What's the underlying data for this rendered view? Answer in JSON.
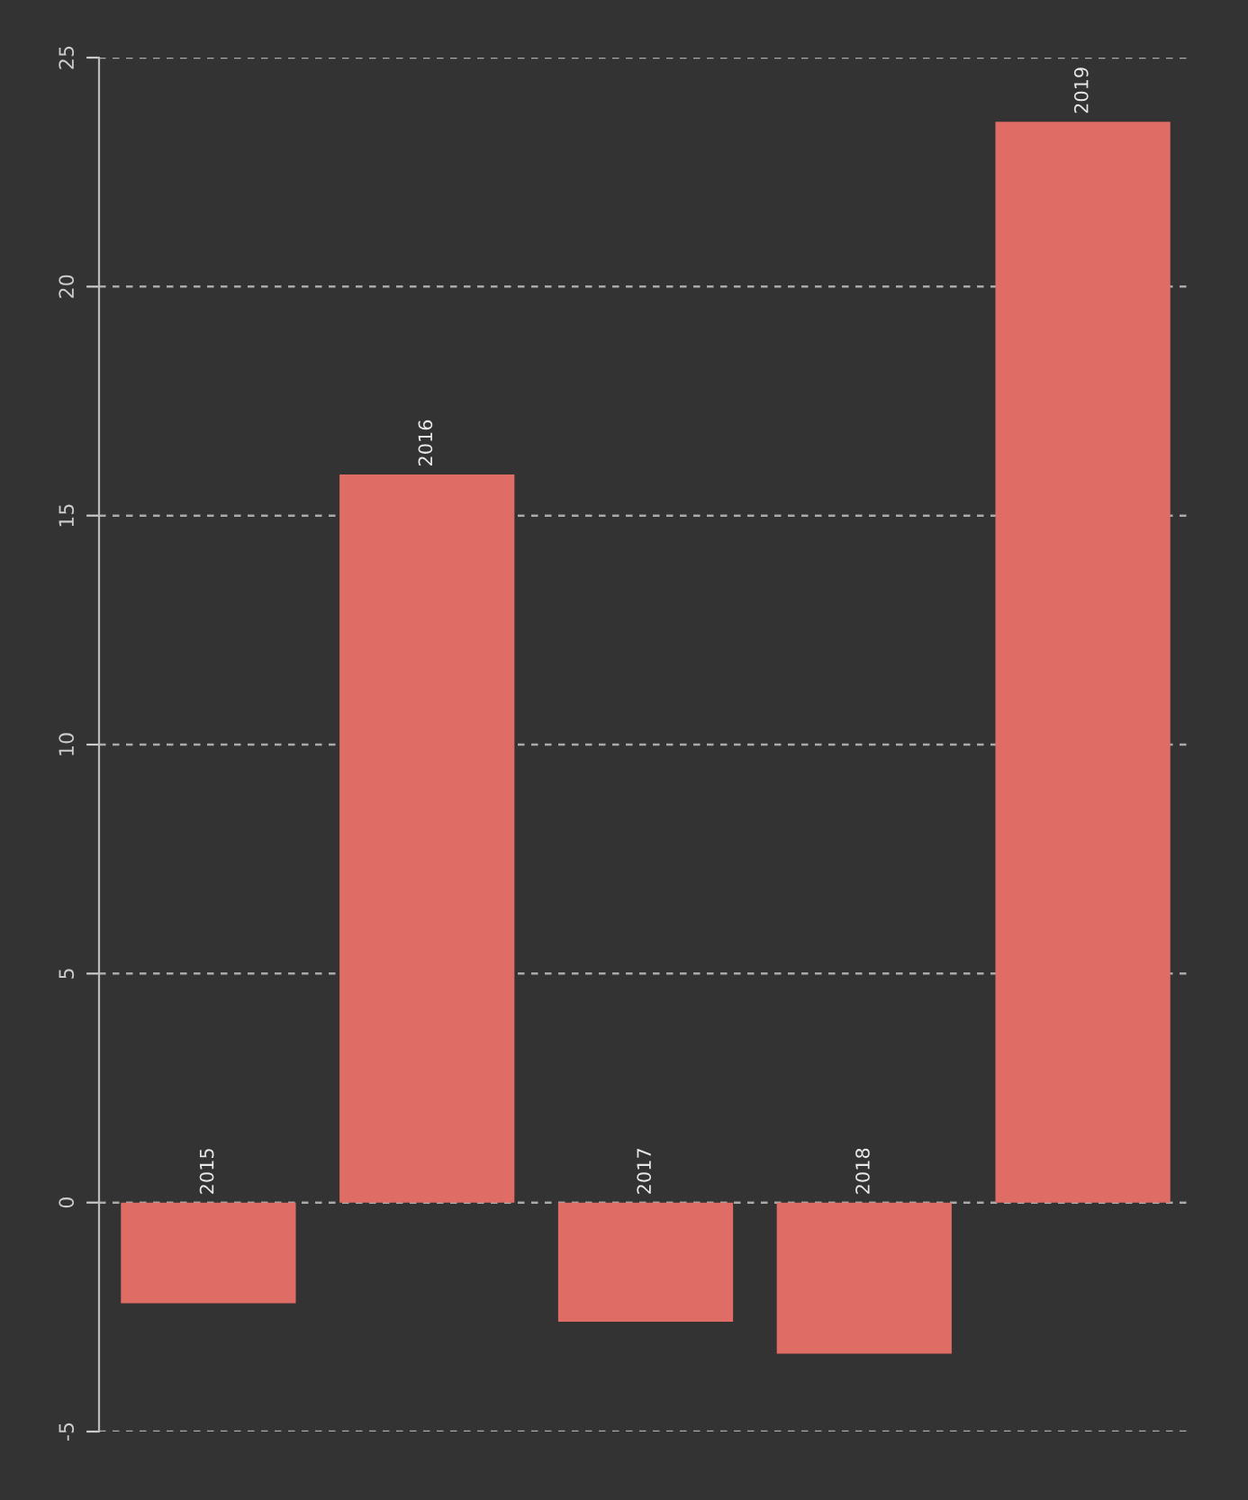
{
  "chart_data": {
    "type": "bar",
    "categories": [
      "2015",
      "2016",
      "2017",
      "2018",
      "2019"
    ],
    "values": [
      -2.2,
      15.9,
      -2.6,
      -3.3,
      23.6
    ],
    "color": "#e06c66",
    "ylim": [
      -5,
      25
    ],
    "yticks": [
      -5,
      0,
      5,
      10,
      15,
      20,
      25
    ],
    "grid": "y"
  }
}
